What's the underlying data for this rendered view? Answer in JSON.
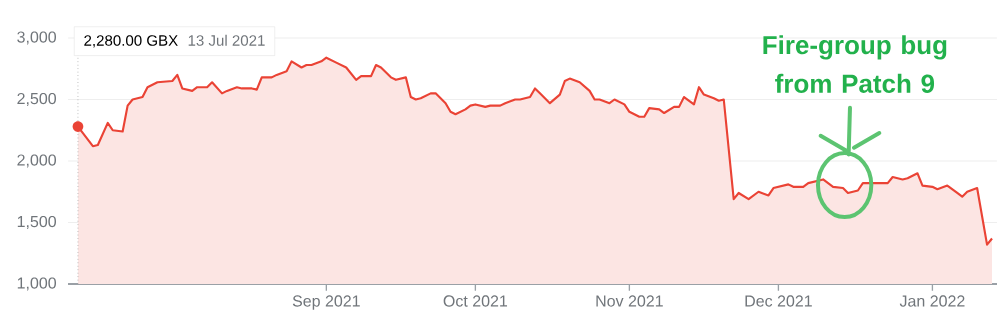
{
  "chart_data": {
    "type": "area",
    "color": "#ea4335",
    "x": [
      "2021-07-13",
      "2021-07-16",
      "2021-07-17",
      "2021-07-19",
      "2021-07-20",
      "2021-07-22",
      "2021-07-23",
      "2021-07-24",
      "2021-07-26",
      "2021-07-27",
      "2021-07-29",
      "2021-08-01",
      "2021-08-02",
      "2021-08-03",
      "2021-08-05",
      "2021-08-06",
      "2021-08-08",
      "2021-08-09",
      "2021-08-11",
      "2021-08-12",
      "2021-08-14",
      "2021-08-15",
      "2021-08-17",
      "2021-08-18",
      "2021-08-19",
      "2021-08-21",
      "2021-08-22",
      "2021-08-24",
      "2021-08-25",
      "2021-08-27",
      "2021-08-28",
      "2021-08-29",
      "2021-08-31",
      "2021-09-01",
      "2021-09-03",
      "2021-09-05",
      "2021-09-07",
      "2021-09-08",
      "2021-09-10",
      "2021-09-11",
      "2021-09-12",
      "2021-09-14",
      "2021-09-15",
      "2021-09-17",
      "2021-09-18",
      "2021-09-19",
      "2021-09-20",
      "2021-09-22",
      "2021-09-23",
      "2021-09-25",
      "2021-09-26",
      "2021-09-27",
      "2021-09-29",
      "2021-09-30",
      "2021-10-01",
      "2021-10-03",
      "2021-10-04",
      "2021-10-06",
      "2021-10-07",
      "2021-10-09",
      "2021-10-10",
      "2021-10-12",
      "2021-10-13",
      "2021-10-14",
      "2021-10-16",
      "2021-10-18",
      "2021-10-19",
      "2021-10-20",
      "2021-10-22",
      "2021-10-24",
      "2021-10-25",
      "2021-10-26",
      "2021-10-28",
      "2021-10-29",
      "2021-10-31",
      "2021-11-01",
      "2021-11-03",
      "2021-11-04",
      "2021-11-05",
      "2021-11-07",
      "2021-11-08",
      "2021-11-10",
      "2021-11-11",
      "2021-11-12",
      "2021-11-14",
      "2021-11-15",
      "2021-11-16",
      "2021-11-18",
      "2021-11-19",
      "2021-11-20",
      "2021-11-22",
      "2021-11-23",
      "2021-11-25",
      "2021-11-27",
      "2021-11-29",
      "2021-11-30",
      "2021-12-03",
      "2021-12-04",
      "2021-12-06",
      "2021-12-07",
      "2021-12-10",
      "2021-12-12",
      "2021-12-14",
      "2021-12-15",
      "2021-12-17",
      "2021-12-18",
      "2021-12-20",
      "2021-12-23",
      "2021-12-24",
      "2021-12-26",
      "2021-12-27",
      "2021-12-29",
      "2021-12-30",
      "2022-01-01",
      "2022-01-02",
      "2022-01-04",
      "2022-01-06",
      "2022-01-07",
      "2022-01-08",
      "2022-01-10",
      "2022-01-12",
      "2022-01-13"
    ],
    "values": [
      2280,
      2120,
      2130,
      2310,
      2250,
      2240,
      2450,
      2500,
      2520,
      2600,
      2640,
      2650,
      2700,
      2590,
      2570,
      2600,
      2600,
      2640,
      2550,
      2570,
      2600,
      2590,
      2590,
      2580,
      2680,
      2680,
      2700,
      2730,
      2810,
      2760,
      2780,
      2780,
      2810,
      2840,
      2800,
      2760,
      2660,
      2690,
      2690,
      2780,
      2760,
      2680,
      2660,
      2680,
      2520,
      2500,
      2510,
      2550,
      2550,
      2470,
      2400,
      2380,
      2420,
      2450,
      2460,
      2440,
      2450,
      2450,
      2470,
      2500,
      2500,
      2520,
      2590,
      2550,
      2470,
      2540,
      2650,
      2670,
      2640,
      2570,
      2500,
      2500,
      2470,
      2500,
      2460,
      2400,
      2360,
      2360,
      2430,
      2420,
      2390,
      2440,
      2440,
      2520,
      2460,
      2600,
      2540,
      2510,
      2490,
      2500,
      1690,
      1740,
      1690,
      1750,
      1720,
      1780,
      1810,
      1790,
      1790,
      1820,
      1850,
      1790,
      1780,
      1740,
      1760,
      1820,
      1820,
      1820,
      1870,
      1850,
      1860,
      1900,
      1800,
      1790,
      1770,
      1800,
      1740,
      1710,
      1750,
      1780,
      1320,
      1370
    ],
    "xlim": [
      "2021-07-11",
      "2022-01-14"
    ],
    "xticks": [
      {
        "value": "2021-09-01",
        "label": "Sep 2021"
      },
      {
        "value": "2021-10-01",
        "label": "Oct 2021"
      },
      {
        "value": "2021-11-01",
        "label": "Nov 2021"
      },
      {
        "value": "2021-12-01",
        "label": "Dec 2021"
      },
      {
        "value": "2022-01-01",
        "label": "Jan 2022"
      }
    ],
    "ylim": [
      1000,
      3000
    ],
    "yticks": [
      {
        "value": 1000,
        "label": "1,000"
      },
      {
        "value": 1500,
        "label": "1,500"
      },
      {
        "value": 2000,
        "label": "2,000"
      },
      {
        "value": 2500,
        "label": "2,500"
      },
      {
        "value": 3000,
        "label": "3,000"
      }
    ],
    "grid": "y",
    "ref_lines": [
      {
        "axis": "x",
        "value": "2021-07-13",
        "line_style": "dotted",
        "color": "#9e9e9e"
      }
    ],
    "annotations": [
      "2,280.00 GBX",
      "13 Jul 2021",
      "Fire-group bug from Patch 9"
    ]
  }
}
